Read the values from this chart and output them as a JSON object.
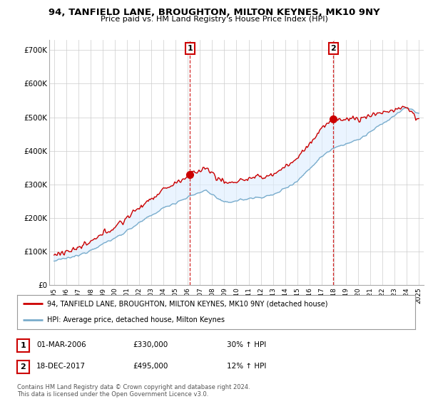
{
  "title": "94, TANFIELD LANE, BROUGHTON, MILTON KEYNES, MK10 9NY",
  "subtitle": "Price paid vs. HM Land Registry's House Price Index (HPI)",
  "ylabel_ticks": [
    "£0",
    "£100K",
    "£200K",
    "£300K",
    "£400K",
    "£500K",
    "£600K",
    "£700K"
  ],
  "ytick_values": [
    0,
    100000,
    200000,
    300000,
    400000,
    500000,
    600000,
    700000
  ],
  "ylim": [
    0,
    730000
  ],
  "sale1_x": 2006.17,
  "sale1_y": 330000,
  "sale2_x": 2017.96,
  "sale2_y": 495000,
  "legend_line1": "94, TANFIELD LANE, BROUGHTON, MILTON KEYNES, MK10 9NY (detached house)",
  "legend_line2": "HPI: Average price, detached house, Milton Keynes",
  "table_row1": [
    "1",
    "01-MAR-2006",
    "£330,000",
    "30% ↑ HPI"
  ],
  "table_row2": [
    "2",
    "18-DEC-2017",
    "£495,000",
    "12% ↑ HPI"
  ],
  "footer": "Contains HM Land Registry data © Crown copyright and database right 2024.\nThis data is licensed under the Open Government Licence v3.0.",
  "line_color_red": "#cc0000",
  "line_color_blue": "#7aadcc",
  "fill_color_blue": "#ddeeff",
  "background_color": "#ffffff",
  "grid_color": "#cccccc",
  "xtick_start": 1995,
  "xtick_end": 2025
}
